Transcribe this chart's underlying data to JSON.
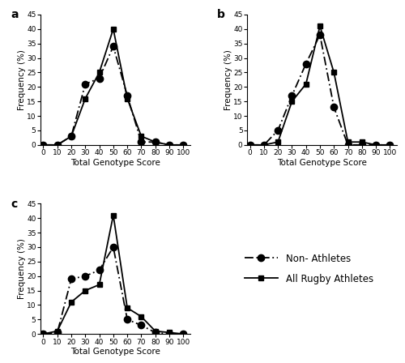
{
  "panel_a": {
    "label": "a",
    "non_athletes": {
      "x": [
        0,
        10,
        20,
        30,
        40,
        50,
        60,
        70,
        80,
        90,
        100
      ],
      "y": [
        0,
        0,
        3,
        21,
        23,
        34,
        17,
        1,
        1,
        0,
        0
      ]
    },
    "rugby_athletes": {
      "x": [
        0,
        10,
        20,
        30,
        40,
        50,
        60,
        70,
        80,
        90,
        100
      ],
      "y": [
        0,
        0,
        3,
        16,
        25,
        40,
        16,
        3,
        1,
        0,
        0
      ]
    }
  },
  "panel_b": {
    "label": "b",
    "non_athletes": {
      "x": [
        0,
        10,
        20,
        30,
        40,
        50,
        60,
        70,
        80,
        90,
        100
      ],
      "y": [
        0,
        0,
        5,
        17,
        28,
        38,
        13,
        0,
        0,
        0,
        0
      ]
    },
    "rugby_athletes": {
      "x": [
        0,
        10,
        20,
        30,
        40,
        50,
        60,
        70,
        80,
        90,
        100
      ],
      "y": [
        0,
        0,
        1,
        15,
        21,
        41,
        25,
        1,
        1,
        0,
        0
      ]
    }
  },
  "panel_c": {
    "label": "c",
    "non_athletes": {
      "x": [
        0,
        10,
        20,
        30,
        40,
        50,
        60,
        70,
        80,
        90,
        100
      ],
      "y": [
        0,
        0.5,
        19,
        20,
        22,
        30,
        5,
        3,
        0.5,
        0,
        0
      ]
    },
    "rugby_athletes": {
      "x": [
        0,
        10,
        20,
        30,
        40,
        50,
        60,
        70,
        80,
        90,
        100
      ],
      "y": [
        0,
        1,
        11,
        15,
        17,
        41,
        9,
        6,
        1,
        0.5,
        0
      ]
    }
  },
  "xlabel": "Total Genotype Score",
  "ylabel": "Frequency (%)",
  "ylim": [
    0,
    45
  ],
  "yticks": [
    0,
    5,
    10,
    15,
    20,
    25,
    30,
    35,
    40,
    45
  ],
  "xticks": [
    0,
    10,
    20,
    30,
    40,
    50,
    60,
    70,
    80,
    90,
    100
  ],
  "legend_non_athletes": "Non- Athletes",
  "legend_rugby_athletes": "All Rugby Athletes",
  "line_color": "black",
  "non_athlete_marker": "o",
  "rugby_marker": "s",
  "non_athlete_linestyle": "--",
  "rugby_linestyle": "-"
}
